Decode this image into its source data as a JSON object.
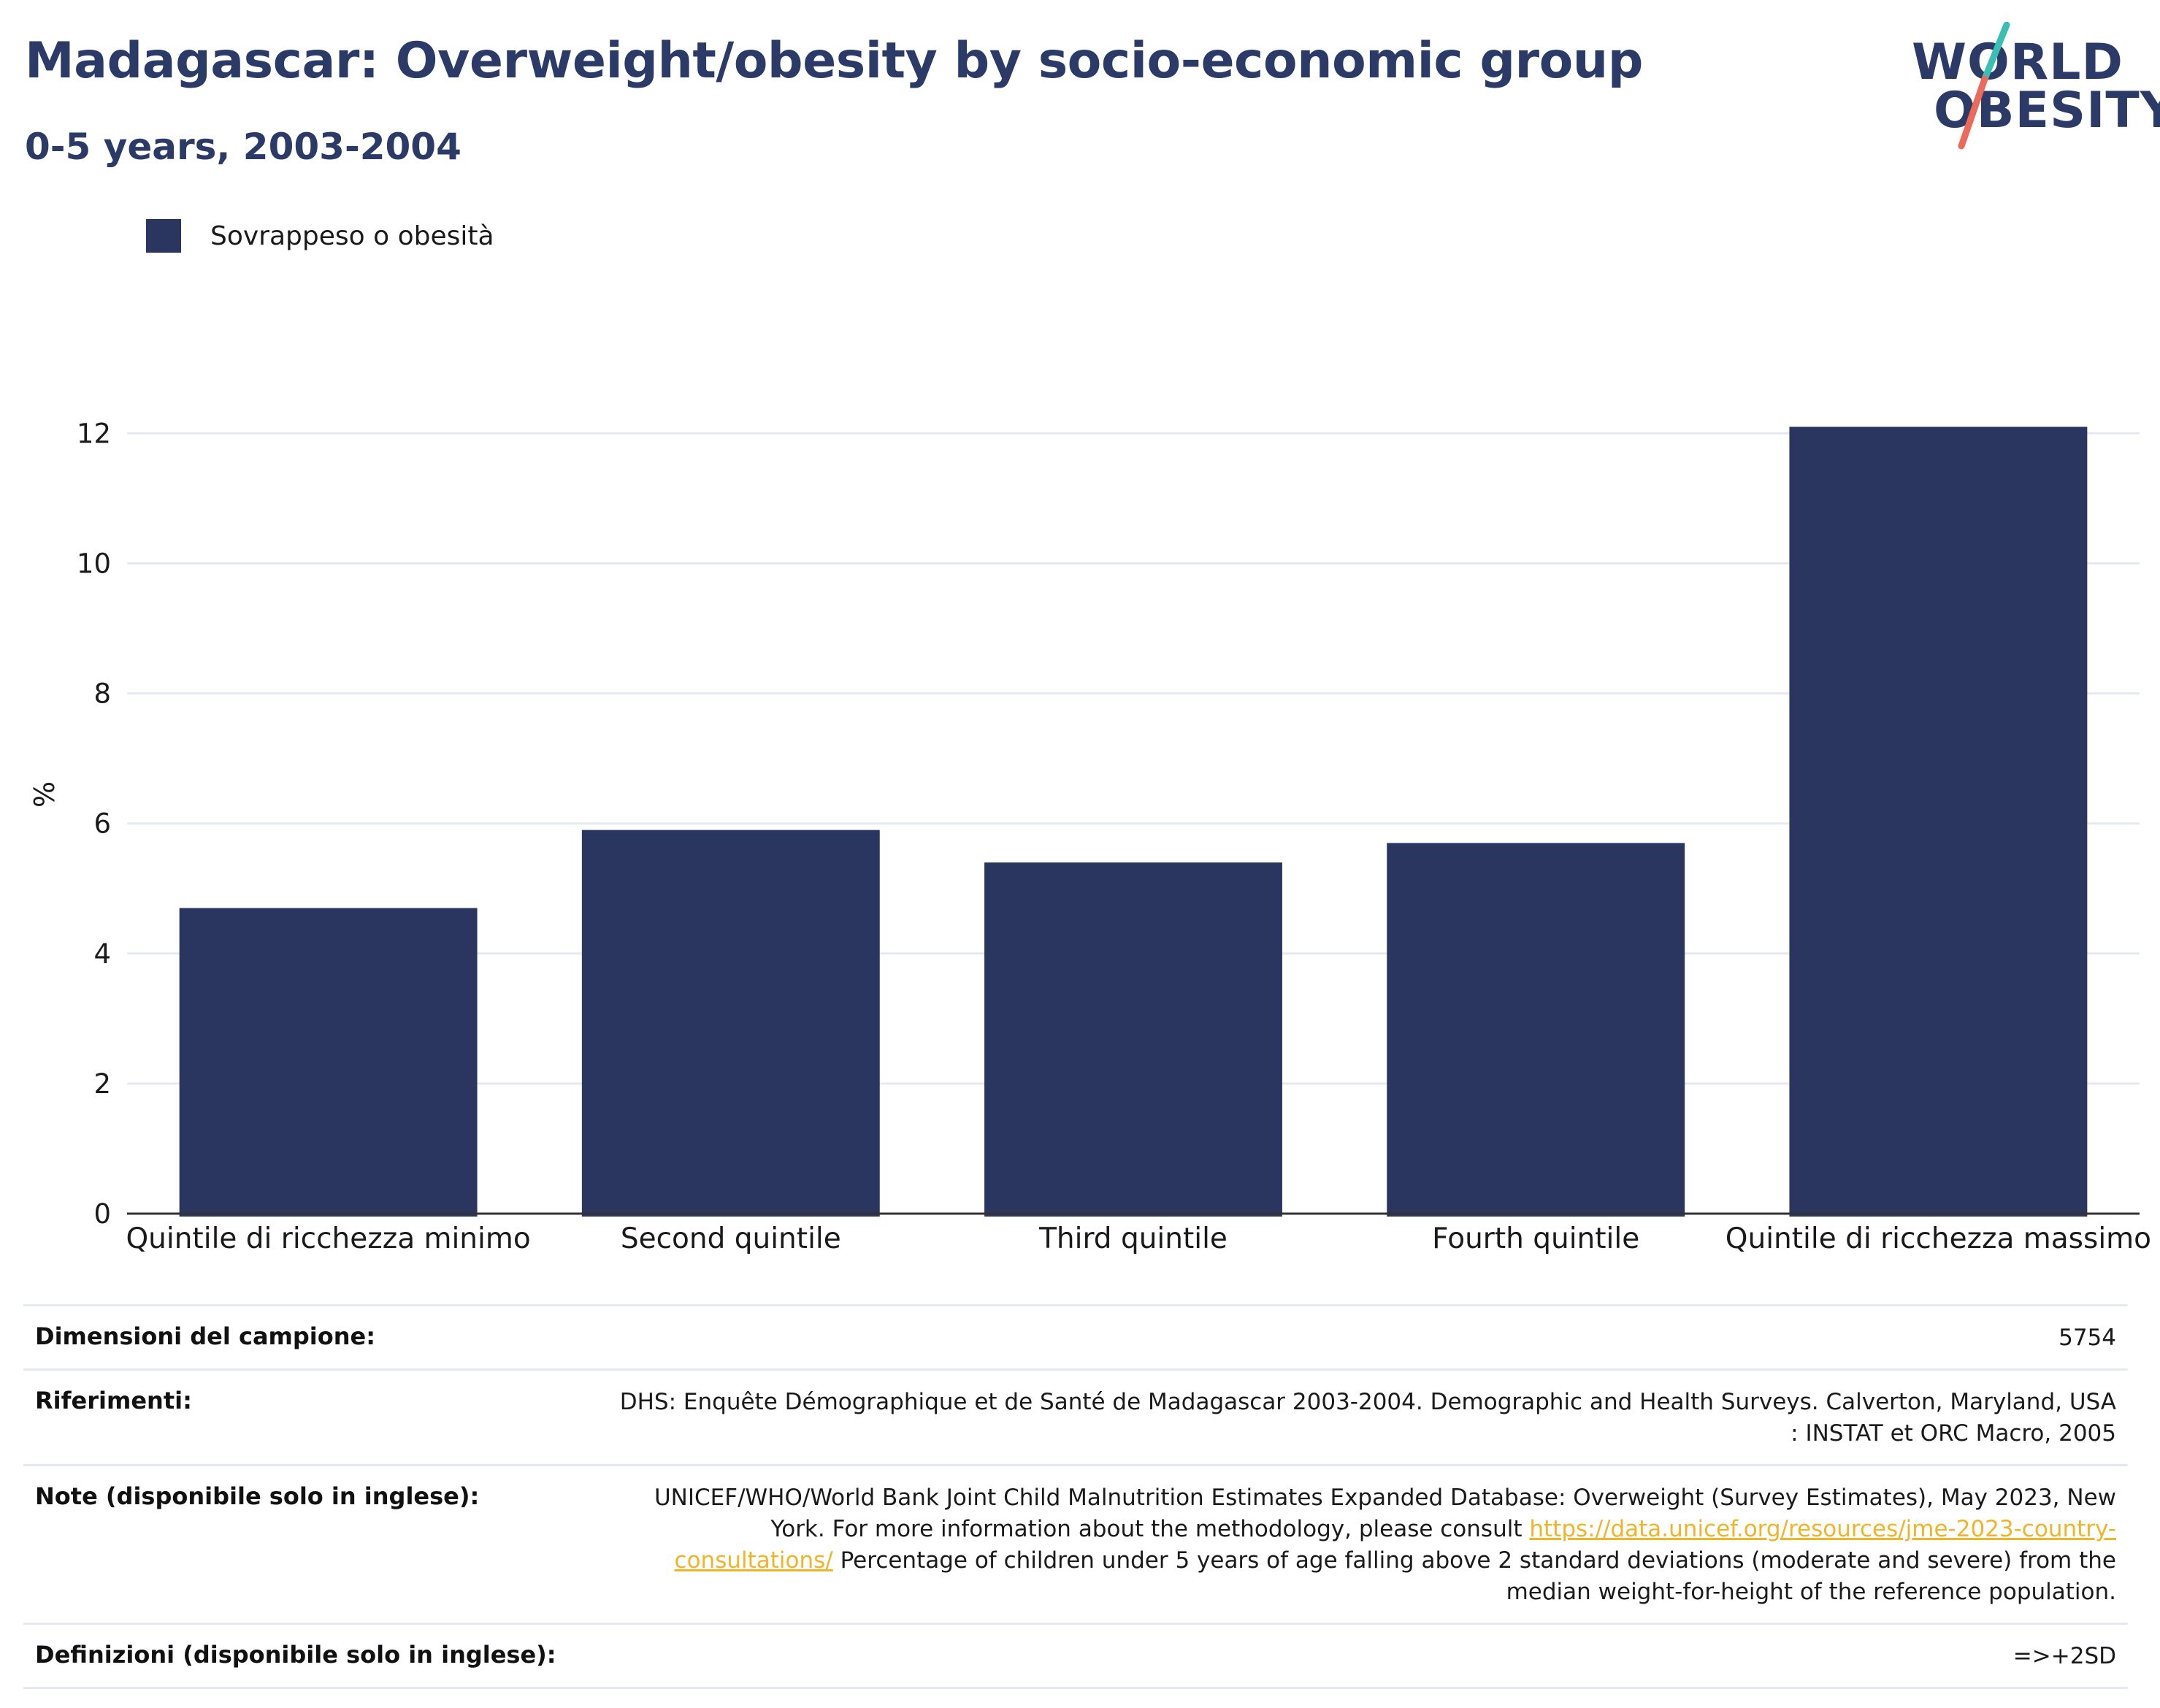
{
  "header": {
    "title": "Madagascar: Overweight/obesity by socio-economic group",
    "subtitle": "0-5 years, 2003-2004"
  },
  "logo": {
    "line1": "WORLD",
    "line2": "OBESITY",
    "colors": {
      "text": "#2b3a67",
      "slash_top": "#3bbfb4",
      "slash_bottom": "#ec6a5a"
    }
  },
  "colors": {
    "bar": "#2a365f",
    "grid": "#e6e9f2",
    "axis": "#333333",
    "link": "#f0b429"
  },
  "chart_data": {
    "type": "bar",
    "categories": [
      "Quintile di ricchezza minimo",
      "Second quintile",
      "Third quintile",
      "Fourth quintile",
      "Quintile di ricchezza massimo"
    ],
    "series": [
      {
        "name": "Sovrappeso o obesità",
        "values": [
          4.7,
          5.9,
          5.4,
          5.7,
          12.1
        ]
      }
    ],
    "ylabel": "%",
    "xlabel": "",
    "ylim": [
      0,
      12.6
    ],
    "yticks": [
      "0",
      "2",
      "4",
      "6",
      "8",
      "10",
      "12"
    ],
    "grid": true,
    "legend_position": "top-left"
  },
  "footer": {
    "rows": [
      {
        "key": "Dimensioni del campione:",
        "value": "5754"
      },
      {
        "key": "Riferimenti:",
        "value": "DHS: Enquête Démographique et de Santé de Madagascar 2003-2004. Demographic and Health Surveys. Calverton, Maryland, USA : INSTAT et ORC Macro, 2005"
      },
      {
        "key": "Note (disponibile solo in inglese):",
        "value_before": "UNICEF/WHO/World Bank Joint Child Malnutrition Estimates Expanded Database: Overweight (Survey Estimates), May 2023, New York. For more information about the methodology, please consult ",
        "link": "https://data.unicef.org/resources/jme-2023-country-consultations/",
        "value_after": " Percentage of children under 5 years of age falling above 2 standard deviations (moderate and severe) from the median weight-for-height of the reference population."
      },
      {
        "key": "Definizioni (disponibile solo in inglese):",
        "value": "=>+2SD"
      }
    ]
  }
}
